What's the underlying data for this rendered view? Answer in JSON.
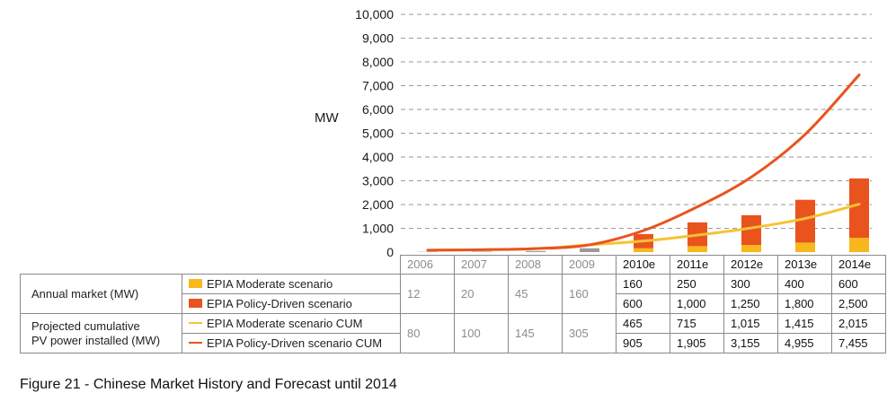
{
  "chart_data": {
    "type": "bar",
    "ylabel": "MW",
    "ylim": [
      0,
      10000
    ],
    "yticks": [
      "10,000",
      "9,000",
      "8,000",
      "7,000",
      "6,000",
      "5,000",
      "4,000",
      "3,000",
      "2,000",
      "1,000",
      "0"
    ],
    "ytick_values": [
      10000,
      9000,
      8000,
      7000,
      6000,
      5000,
      4000,
      3000,
      2000,
      1000,
      0
    ],
    "categories": [
      "2006",
      "2007",
      "2008",
      "2009",
      "2010e",
      "2011e",
      "2012e",
      "2013e",
      "2014e"
    ],
    "historical_count": 4,
    "stacked": true,
    "grid": true,
    "bar_series": [
      {
        "name": "EPIA Moderate scenario",
        "color": "#f7b81c",
        "values": [
          null,
          null,
          null,
          null,
          160,
          250,
          300,
          400,
          600
        ]
      },
      {
        "name": "EPIA Policy-Driven scenario",
        "color": "#e9531e",
        "values": [
          null,
          null,
          null,
          null,
          600,
          1000,
          1250,
          1800,
          2500
        ]
      }
    ],
    "historical_annual": [
      12,
      20,
      45,
      160
    ],
    "historical_bar_color": "#9a9a9a",
    "line_series": [
      {
        "name": "EPIA Moderate scenario CUM",
        "color": "#f7c233",
        "values": [
          80,
          100,
          145,
          305,
          465,
          715,
          1015,
          1415,
          2015
        ]
      },
      {
        "name": "EPIA Policy-Driven scenario CUM",
        "color": "#e9531e",
        "values": [
          80,
          100,
          145,
          305,
          905,
          1905,
          3155,
          4955,
          7455
        ]
      }
    ]
  },
  "table": {
    "row_group_annual": "Annual market (MW)",
    "row_group_cum_line1": "Projected cumulative",
    "row_group_cum_line2": "PV power installed (MW)",
    "hist_annual": [
      "12",
      "20",
      "45",
      "160"
    ],
    "hist_cum": [
      "80",
      "100",
      "145",
      "305"
    ],
    "rows": [
      {
        "label": "EPIA Moderate scenario",
        "values": [
          "160",
          "250",
          "300",
          "400",
          "600"
        ]
      },
      {
        "label": "EPIA Policy-Driven scenario",
        "values": [
          "600",
          "1,000",
          "1,250",
          "1,800",
          "2,500"
        ]
      },
      {
        "label": "EPIA Moderate scenario CUM",
        "values": [
          "465",
          "715",
          "1,015",
          "1,415",
          "2,015"
        ]
      },
      {
        "label": "EPIA Policy-Driven scenario CUM",
        "values": [
          "905",
          "1,905",
          "3,155",
          "4,955",
          "7,455"
        ]
      }
    ]
  },
  "caption": "Figure 21 - Chinese Market History and Forecast until 2014"
}
